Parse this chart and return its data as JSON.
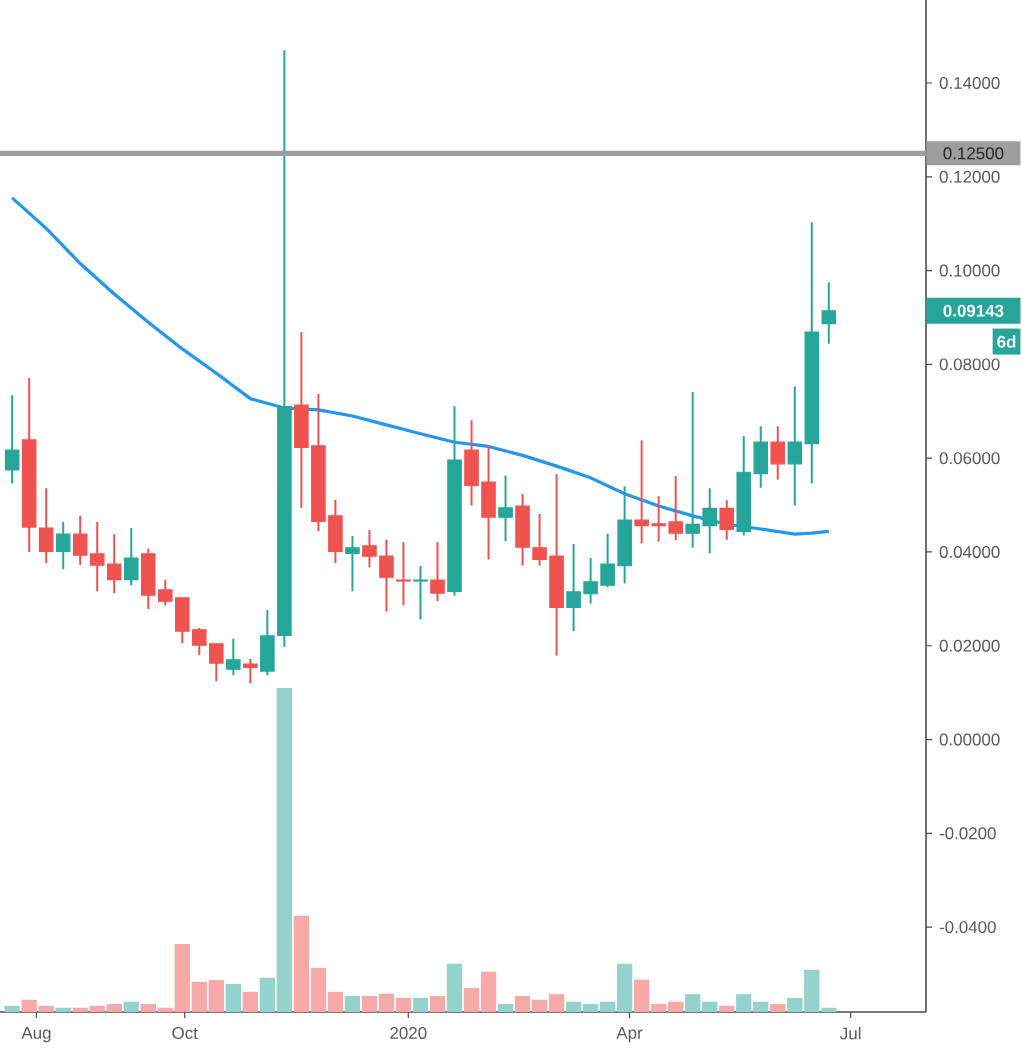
{
  "chart_data": {
    "type": "candlestick",
    "x": [
      "2019-07-22",
      "2019-07-29",
      "2019-08-05",
      "2019-08-12",
      "2019-08-19",
      "2019-08-26",
      "2019-09-02",
      "2019-09-09",
      "2019-09-16",
      "2019-09-23",
      "2019-09-30",
      "2019-10-07",
      "2019-10-14",
      "2019-10-21",
      "2019-10-28",
      "2019-11-04",
      "2019-11-11",
      "2019-11-18",
      "2019-11-25",
      "2019-12-02",
      "2019-12-09",
      "2019-12-16",
      "2019-12-23",
      "2019-12-30",
      "2020-01-06",
      "2020-01-13",
      "2020-01-20",
      "2020-01-27",
      "2020-02-03",
      "2020-02-10",
      "2020-02-17",
      "2020-02-24",
      "2020-03-02",
      "2020-03-09",
      "2020-03-16",
      "2020-03-23",
      "2020-03-30",
      "2020-04-06",
      "2020-04-13",
      "2020-04-20",
      "2020-04-27",
      "2020-05-04",
      "2020-05-11",
      "2020-05-18",
      "2020-05-25",
      "2020-06-01",
      "2020-06-08",
      "2020-06-15",
      "2020-06-22"
    ],
    "ohlc": [
      [
        0.0575,
        0.0734,
        0.0546,
        0.0617
      ],
      [
        0.0639,
        0.0771,
        0.04,
        0.0453
      ],
      [
        0.0451,
        0.0536,
        0.0376,
        0.0401
      ],
      [
        0.0401,
        0.0464,
        0.0363,
        0.0438
      ],
      [
        0.0438,
        0.0477,
        0.0372,
        0.0393
      ],
      [
        0.0396,
        0.0464,
        0.0316,
        0.0372
      ],
      [
        0.0374,
        0.0438,
        0.0312,
        0.0341
      ],
      [
        0.0341,
        0.0451,
        0.0329,
        0.0387
      ],
      [
        0.0396,
        0.0407,
        0.0278,
        0.0308
      ],
      [
        0.0319,
        0.0341,
        0.0286,
        0.0295
      ],
      [
        0.0302,
        0.0302,
        0.0205,
        0.0231
      ],
      [
        0.0234,
        0.0238,
        0.018,
        0.0201
      ],
      [
        0.0204,
        0.0204,
        0.0124,
        0.0163
      ],
      [
        0.015,
        0.0215,
        0.0137,
        0.017
      ],
      [
        0.0161,
        0.0172,
        0.012,
        0.0154
      ],
      [
        0.0146,
        0.0276,
        0.0137,
        0.0221
      ],
      [
        0.0222,
        0.147,
        0.0198,
        0.071
      ],
      [
        0.0713,
        0.0869,
        0.0494,
        0.0623
      ],
      [
        0.0626,
        0.0737,
        0.0444,
        0.0465
      ],
      [
        0.0477,
        0.0511,
        0.0376,
        0.0401
      ],
      [
        0.0397,
        0.0434,
        0.0316,
        0.0409
      ],
      [
        0.0413,
        0.0447,
        0.0367,
        0.0391
      ],
      [
        0.0391,
        0.0426,
        0.0273,
        0.0346
      ],
      [
        0.034,
        0.0421,
        0.0286,
        0.0338
      ],
      [
        0.0338,
        0.037,
        0.0256,
        0.034
      ],
      [
        0.034,
        0.0421,
        0.0295,
        0.0312
      ],
      [
        0.0316,
        0.0711,
        0.0307,
        0.0596
      ],
      [
        0.0617,
        0.0681,
        0.0499,
        0.0542
      ],
      [
        0.0549,
        0.0628,
        0.0384,
        0.0474
      ],
      [
        0.0474,
        0.0563,
        0.0423,
        0.0494
      ],
      [
        0.0498,
        0.0524,
        0.0371,
        0.041
      ],
      [
        0.0409,
        0.0481,
        0.0371,
        0.0384
      ],
      [
        0.0391,
        0.0566,
        0.0179,
        0.0282
      ],
      [
        0.0282,
        0.0417,
        0.0231,
        0.0315
      ],
      [
        0.0311,
        0.0387,
        0.029,
        0.0336
      ],
      [
        0.0329,
        0.0439,
        0.0325,
        0.0374
      ],
      [
        0.0371,
        0.054,
        0.0333,
        0.0468
      ],
      [
        0.0468,
        0.0638,
        0.0418,
        0.0456
      ],
      [
        0.046,
        0.0519,
        0.0422,
        0.0456
      ],
      [
        0.0464,
        0.0562,
        0.0425,
        0.044
      ],
      [
        0.044,
        0.0741,
        0.0409,
        0.0459
      ],
      [
        0.0456,
        0.0536,
        0.0397,
        0.0493
      ],
      [
        0.0493,
        0.051,
        0.0426,
        0.0448
      ],
      [
        0.0444,
        0.0647,
        0.0435,
        0.057
      ],
      [
        0.0567,
        0.0668,
        0.0537,
        0.0634
      ],
      [
        0.0634,
        0.0668,
        0.0554,
        0.0588
      ],
      [
        0.0588,
        0.0753,
        0.0499,
        0.0634
      ],
      [
        0.0631,
        0.1103,
        0.0546,
        0.0869
      ],
      [
        0.0887,
        0.0975,
        0.0844,
        0.09143
      ]
    ],
    "colors": [
      "#26a69a",
      "#ef5350",
      "#ef5350",
      "#26a69a",
      "#ef5350",
      "#ef5350",
      "#ef5350",
      "#26a69a",
      "#ef5350",
      "#ef5350",
      "#ef5350",
      "#ef5350",
      "#ef5350",
      "#26a69a",
      "#ef5350",
      "#26a69a",
      "#26a69a",
      "#ef5350",
      "#ef5350",
      "#ef5350",
      "#26a69a",
      "#ef5350",
      "#ef5350",
      "#ef5350",
      "#26a69a",
      "#ef5350",
      "#26a69a",
      "#ef5350",
      "#ef5350",
      "#26a69a",
      "#ef5350",
      "#ef5350",
      "#ef5350",
      "#26a69a",
      "#26a69a",
      "#26a69a",
      "#26a69a",
      "#ef5350",
      "#ef5350",
      "#ef5350",
      "#26a69a",
      "#26a69a",
      "#ef5350",
      "#26a69a",
      "#26a69a",
      "#ef5350",
      "#26a69a",
      "#26a69a",
      "#26a69a"
    ],
    "series": [
      {
        "type": "line",
        "color": "#2196f3",
        "x": [
          "2019-07-22",
          "2019-08-05",
          "2019-08-19",
          "2019-09-02",
          "2019-09-16",
          "2019-09-30",
          "2019-10-14",
          "2019-10-28",
          "2019-11-11",
          "2019-11-25",
          "2019-12-09",
          "2019-12-23",
          "2020-01-06",
          "2020-01-20",
          "2020-02-03",
          "2020-02-17",
          "2020-03-02",
          "2020-03-16",
          "2020-03-30",
          "2020-04-13",
          "2020-04-27",
          "2020-05-11",
          "2020-05-25",
          "2020-06-08",
          "2020-06-15",
          "2020-06-22"
        ],
        "values": [
          0.1155,
          0.109,
          0.1015,
          0.095,
          0.089,
          0.0833,
          0.0781,
          0.0727,
          0.0707,
          0.0703,
          0.069,
          0.0671,
          0.0652,
          0.0634,
          0.0625,
          0.0606,
          0.0583,
          0.0558,
          0.0524,
          0.0498,
          0.0477,
          0.0459,
          0.0449,
          0.0438,
          0.044,
          0.0444
        ]
      },
      {
        "type": "bar",
        "colors": [
          "#94d3cc",
          "#f7a9a7",
          "#f7a9a7",
          "#94d3cc",
          "#f7a9a7",
          "#f7a9a7",
          "#f7a9a7",
          "#94d3cc",
          "#f7a9a7",
          "#f7a9a7",
          "#f7a9a7",
          "#f7a9a7",
          "#f7a9a7",
          "#94d3cc",
          "#f7a9a7",
          "#94d3cc",
          "#94d3cc",
          "#f7a9a7",
          "#f7a9a7",
          "#f7a9a7",
          "#94d3cc",
          "#f7a9a7",
          "#f7a9a7",
          "#f7a9a7",
          "#94d3cc",
          "#f7a9a7",
          "#94d3cc",
          "#f7a9a7",
          "#f7a9a7",
          "#94d3cc",
          "#f7a9a7",
          "#f7a9a7",
          "#f7a9a7",
          "#94d3cc",
          "#94d3cc",
          "#94d3cc",
          "#94d3cc",
          "#f7a9a7",
          "#f7a9a7",
          "#f7a9a7",
          "#94d3cc",
          "#94d3cc",
          "#f7a9a7",
          "#94d3cc",
          "#94d3cc",
          "#f7a9a7",
          "#94d3cc",
          "#94d3cc",
          "#94d3cc"
        ],
        "base": [
          -0.0581,
          -0.0581,
          -0.0581,
          -0.0581,
          -0.0581,
          -0.0581,
          -0.0581,
          -0.0581,
          -0.0581,
          -0.0581,
          -0.0581,
          -0.0581,
          -0.0581,
          -0.0581,
          -0.0581,
          -0.0581,
          -0.0581,
          -0.0581,
          -0.0581,
          -0.0581,
          -0.0581,
          -0.0581,
          -0.0581,
          -0.0581,
          -0.0581,
          -0.0581,
          -0.0581,
          -0.0581,
          -0.0581,
          -0.0581,
          -0.0581,
          -0.0581,
          -0.0581,
          -0.0581,
          -0.0581,
          -0.0581,
          -0.0581,
          -0.0581,
          -0.0581,
          -0.0581,
          -0.0581,
          -0.0581,
          -0.0581,
          -0.0581,
          -0.0581,
          -0.0581,
          -0.0581,
          -0.0581,
          -0.0581
        ],
        "values": [
          0.0013,
          0.0026,
          0.0013,
          0.0009,
          0.0009,
          0.0013,
          0.0017,
          0.0022,
          0.0017,
          0.0009,
          0.0145,
          0.0064,
          0.0068,
          0.006,
          0.0043,
          0.0073,
          0.0691,
          0.0205,
          0.0094,
          0.0043,
          0.0034,
          0.0034,
          0.0039,
          0.003,
          0.003,
          0.0034,
          0.0103,
          0.0051,
          0.0086,
          0.0017,
          0.0034,
          0.0026,
          0.0038,
          0.0022,
          0.0017,
          0.0022,
          0.0103,
          0.0069,
          0.0017,
          0.0022,
          0.0038,
          0.0022,
          0.0013,
          0.0038,
          0.0022,
          0.0017,
          0.003,
          0.009,
          0.0009
        ]
      }
    ],
    "xlim": [
      "2019-07-17",
      "2020-08-01"
    ],
    "xticks": [
      {
        "value": "2019-08-01",
        "label": "Aug"
      },
      {
        "value": "2019-10-01",
        "label": "Oct"
      },
      {
        "value": "2020-01-01",
        "label": "2020"
      },
      {
        "value": "2020-04-01",
        "label": "Apr"
      },
      {
        "value": "2020-07-01",
        "label": "Jul"
      }
    ],
    "ylim": [
      -0.0581,
      0.1577
    ],
    "yticks": [
      {
        "value": 0.14,
        "label": "0.14000"
      },
      {
        "value": 0.12,
        "label": "0.12000"
      },
      {
        "value": 0.1,
        "label": "0.10000"
      },
      {
        "value": 0.08,
        "label": "0.08000"
      },
      {
        "value": 0.06,
        "label": "0.06000"
      },
      {
        "value": 0.04,
        "label": "0.04000"
      },
      {
        "value": 0.02,
        "label": "0.02000"
      },
      {
        "value": 0,
        "label": "0.00000"
      },
      {
        "value": -0.02,
        "label": "-0.0200"
      },
      {
        "value": -0.04,
        "label": "-0.0400"
      }
    ],
    "ref_lines": [
      {
        "axis": "y",
        "value": 0.125,
        "label": "0.12500",
        "color": "#9e9e9e"
      }
    ],
    "annotations": [
      "0.09143",
      "6d"
    ]
  }
}
